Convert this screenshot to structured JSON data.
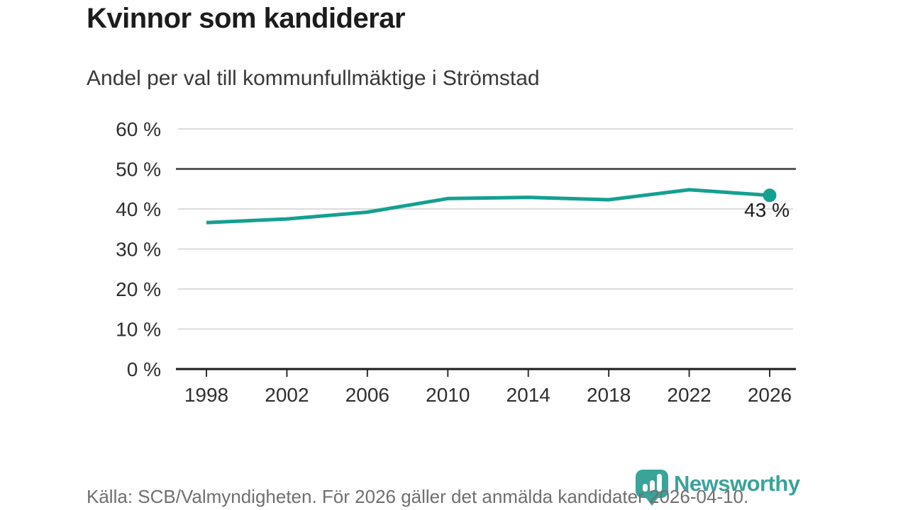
{
  "header": {
    "title": "Kvinnor som kandiderar",
    "subtitle": "Andel per val till kommunfullmäktige i Strömstad"
  },
  "footer": {
    "source": "Källa: SCB/Valmyndigheten. För 2026 gäller det anmälda kandidater 2026-04-10.",
    "brand": "Newsworthy"
  },
  "colors": {
    "title": "#1c1c1c",
    "subtitle": "#383838",
    "axis_text": "#2f2f2f",
    "grid": "#dcdcdc",
    "benchmark": "#57575b",
    "axis": "#1a1a1a",
    "line": "#14a091",
    "annotation": "#1c1c1c",
    "source": "#6f6f6f",
    "brand": "#3aa39a"
  },
  "chart_data": {
    "type": "line",
    "title": "Kvinnor som kandiderar",
    "subtitle": "Andel per val till kommunfullmäktige i Strömstad",
    "categories": [
      "1998",
      "2002",
      "2006",
      "2010",
      "2014",
      "2018",
      "2022",
      "2026"
    ],
    "values": [
      36.6,
      37.5,
      39.2,
      42.6,
      42.9,
      42.3,
      44.8,
      43.4
    ],
    "end_label": "43 %",
    "ylim": [
      0,
      60
    ],
    "yticks": [
      {
        "value": 0,
        "label": "0 %"
      },
      {
        "value": 10,
        "label": "10 %"
      },
      {
        "value": 20,
        "label": "20 %"
      },
      {
        "value": 30,
        "label": "30 %"
      },
      {
        "value": 40,
        "label": "40 %"
      },
      {
        "value": 50,
        "label": "50 %"
      },
      {
        "value": 60,
        "label": "60 %"
      }
    ],
    "benchmark_value": 50,
    "grid": true,
    "legend": "none",
    "xlabel": "",
    "ylabel": ""
  }
}
